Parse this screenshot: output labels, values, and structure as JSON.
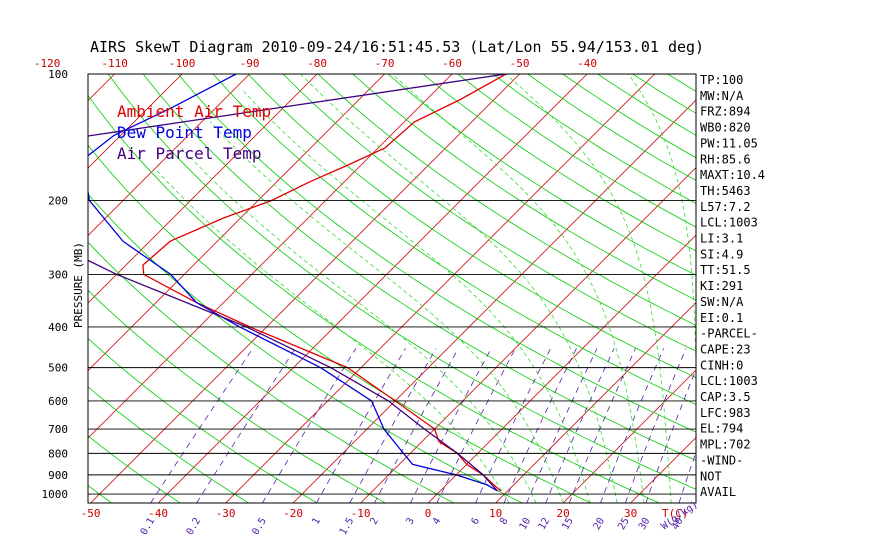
{
  "title": "AIRS SkewT Diagram 2010-09-24/16:51:45.53 (Lat/Lon 55.94/153.01 deg)",
  "colors": {
    "temperature": "#e00000",
    "dewpoint": "#0000e0",
    "parcel": "#400080",
    "isotherm": "#cc0000",
    "dry_adiabat": "#00cc00",
    "moist_adiabat": "#33dd33",
    "mixing_ratio": "#5522aa",
    "frame": "#000000",
    "bottom_labels": "#cc0000",
    "mixing_labels": "#5522aa"
  },
  "chart_data": {
    "type": "skewt",
    "title": "AIRS SkewT Diagram 2010-09-24/16:51:45.53 (Lat/Lon 55.94/153.01 deg)",
    "ylabel": "PRESSURE (MB)",
    "pressure_range": [
      100,
      1050
    ],
    "pressure_tick_labels": [
      {
        "p": 100,
        "label": "100"
      },
      {
        "p": 200,
        "label": "200"
      },
      {
        "p": 300,
        "label": "300"
      },
      {
        "p": 400,
        "label": "400"
      },
      {
        "p": 500,
        "label": "500"
      },
      {
        "p": 600,
        "label": "600"
      },
      {
        "p": 700,
        "label": "700"
      },
      {
        "p": 800,
        "label": "800"
      },
      {
        "p": 900,
        "label": "900"
      },
      {
        "p": 1000,
        "label": "1000"
      }
    ],
    "top_temperature_labels": [
      {
        "t": -120,
        "label": "-120"
      },
      {
        "t": -110,
        "label": "-110"
      },
      {
        "t": -100,
        "label": "-100"
      },
      {
        "t": -90,
        "label": "-90"
      },
      {
        "t": -80,
        "label": "-80"
      },
      {
        "t": -70,
        "label": "-70"
      },
      {
        "t": -60,
        "label": "-60"
      },
      {
        "t": -50,
        "label": "-50"
      },
      {
        "t": -40,
        "label": "-40"
      }
    ],
    "bottom_temperature_labels": [
      {
        "t": -50,
        "label": "-50"
      },
      {
        "t": -40,
        "label": "-40"
      },
      {
        "t": -30,
        "label": "-30"
      },
      {
        "t": -20,
        "label": "-20"
      },
      {
        "t": -10,
        "label": "-10"
      },
      {
        "t": 0,
        "label": "0"
      },
      {
        "t": 10,
        "label": "10"
      },
      {
        "t": 20,
        "label": "20"
      },
      {
        "t": 30,
        "label": "30"
      }
    ],
    "bottom_axis_unit": "T(C)",
    "mixing_ratio_labels": [
      {
        "w": 0.1,
        "label": "0.1"
      },
      {
        "w": 0.2,
        "label": "0.2"
      },
      {
        "w": 0.5,
        "label": "0.5"
      },
      {
        "w": 1,
        "label": "1"
      },
      {
        "w": 1.5,
        "label": "1.5"
      },
      {
        "w": 2,
        "label": "2"
      },
      {
        "w": 3,
        "label": "3"
      },
      {
        "w": 4,
        "label": "4"
      },
      {
        "w": 6,
        "label": "6"
      },
      {
        "w": 8,
        "label": "8"
      },
      {
        "w": 10,
        "label": "10"
      },
      {
        "w": 12,
        "label": "12"
      },
      {
        "w": 15,
        "label": "15"
      },
      {
        "w": 20,
        "label": "20"
      },
      {
        "w": 25,
        "label": "25"
      },
      {
        "w": 30,
        "label": "30"
      },
      {
        "w": 40,
        "label": "40"
      }
    ],
    "mixing_ratio_unit": "W(g/kg)",
    "legend": [
      {
        "label": "Ambient Air Temp",
        "color": "#e00000"
      },
      {
        "label": "Dew Point Temp",
        "color": "#0000e0"
      },
      {
        "label": "Air Parcel Temp",
        "color": "#400080"
      }
    ],
    "series": [
      {
        "name": "Ambient Air Temp",
        "points": [
          {
            "p": 100,
            "t": -52
          },
          {
            "p": 115,
            "t": -55
          },
          {
            "p": 130,
            "t": -58.5
          },
          {
            "p": 150,
            "t": -59
          },
          {
            "p": 165,
            "t": -62
          },
          {
            "p": 180,
            "t": -65
          },
          {
            "p": 200,
            "t": -68
          },
          {
            "p": 220,
            "t": -72.5
          },
          {
            "p": 250,
            "t": -77
          },
          {
            "p": 285,
            "t": -77.5
          },
          {
            "p": 300,
            "t": -76
          },
          {
            "p": 350,
            "t": -64
          },
          {
            "p": 400,
            "t": -52.5
          },
          {
            "p": 500,
            "t": -32
          },
          {
            "p": 600,
            "t": -20
          },
          {
            "p": 700,
            "t": -10
          },
          {
            "p": 750,
            "t": -7.5
          },
          {
            "p": 800,
            "t": -3
          },
          {
            "p": 850,
            "t": 0
          },
          {
            "p": 900,
            "t": 4
          },
          {
            "p": 950,
            "t": 7
          },
          {
            "p": 983,
            "t": 9
          }
        ]
      },
      {
        "name": "Dew Point Temp",
        "points": [
          {
            "p": 100,
            "t": -92
          },
          {
            "p": 120,
            "t": -96.5
          },
          {
            "p": 140,
            "t": -101
          },
          {
            "p": 160,
            "t": -102
          },
          {
            "p": 200,
            "t": -95
          },
          {
            "p": 250,
            "t": -84
          },
          {
            "p": 300,
            "t": -72
          },
          {
            "p": 350,
            "t": -64
          },
          {
            "p": 400,
            "t": -54
          },
          {
            "p": 500,
            "t": -36
          },
          {
            "p": 600,
            "t": -23.5
          },
          {
            "p": 700,
            "t": -17.5
          },
          {
            "p": 800,
            "t": -11
          },
          {
            "p": 850,
            "t": -8
          },
          {
            "p": 900,
            "t": 0
          },
          {
            "p": 950,
            "t": 6
          },
          {
            "p": 983,
            "t": 8.5
          }
        ]
      },
      {
        "name": "Air Parcel Temp",
        "points": [
          {
            "p": 983,
            "t": 8.5
          },
          {
            "p": 900,
            "t": 4
          },
          {
            "p": 800,
            "t": -3
          },
          {
            "p": 700,
            "t": -11.5
          },
          {
            "p": 600,
            "t": -21
          },
          {
            "p": 500,
            "t": -34.5
          },
          {
            "p": 400,
            "t": -53
          },
          {
            "p": 300,
            "t": -80
          },
          {
            "p": 250,
            "t": -95
          },
          {
            "p": 200,
            "t": -111
          },
          {
            "p": 160,
            "t": -125
          },
          {
            "p": 100,
            "t": -52
          }
        ]
      }
    ],
    "indices": [
      "TP:100",
      "MW:N/A",
      "FRZ:894",
      "WB0:820",
      "PW:11.05",
      "RH:85.6",
      "MAXT:10.4",
      "TH:5463",
      "L57:7.2",
      "LCL:1003",
      "LI:3.1",
      "SI:4.9",
      "TT:51.5",
      "KI:291",
      "SW:N/A",
      "EI:0.1",
      "-PARCEL-",
      "CAPE:23",
      "CINH:0",
      "LCL:1003",
      "CAP:3.5",
      "LFC:983",
      "EL:794",
      "MPL:702",
      "-WIND-",
      "NOT",
      "AVAIL"
    ]
  }
}
